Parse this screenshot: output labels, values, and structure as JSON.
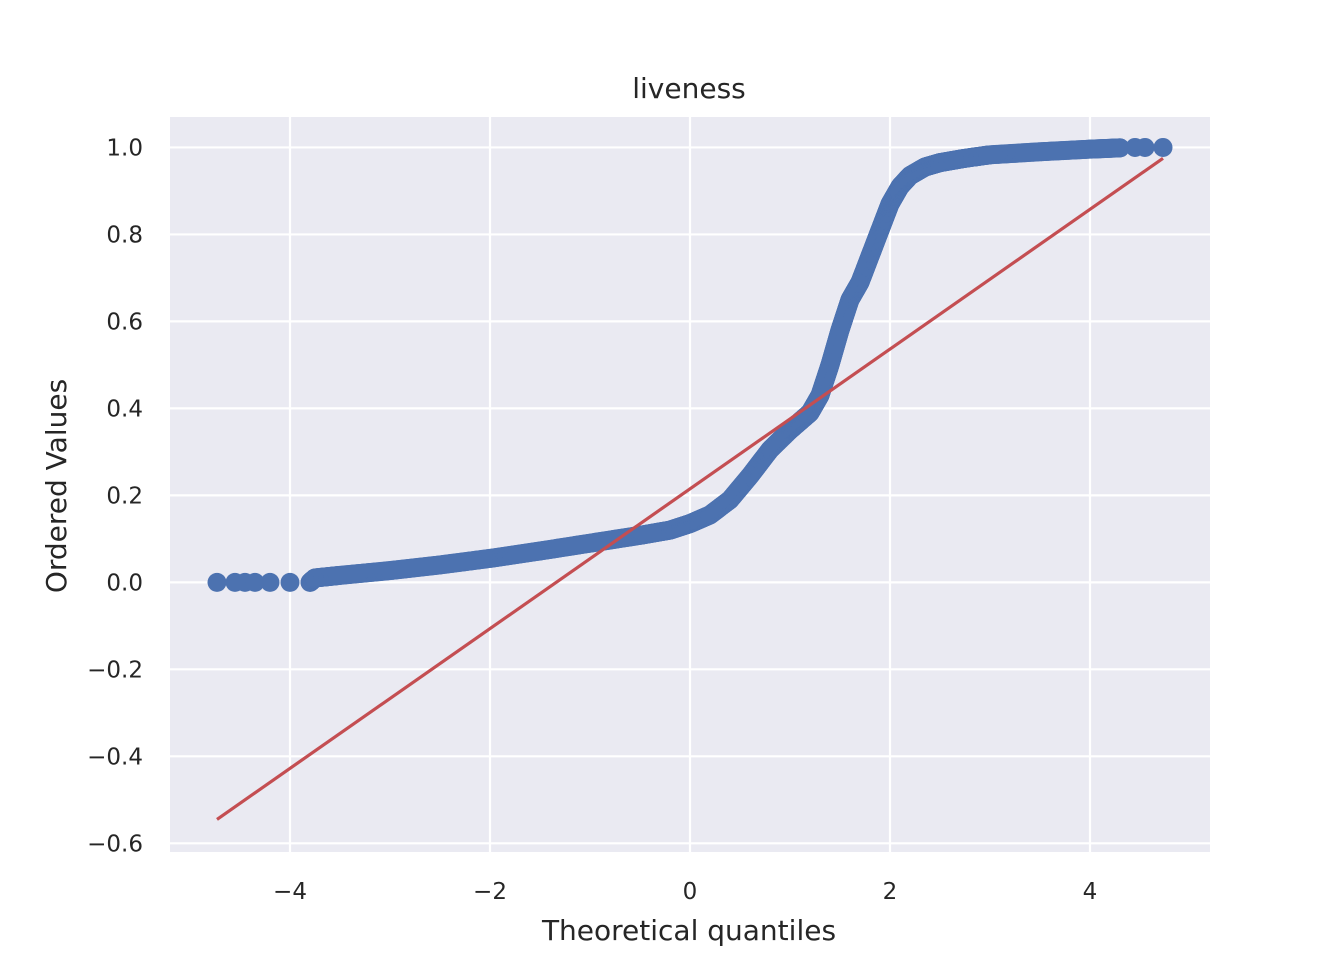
{
  "chart_data": {
    "type": "scatter",
    "title": "liveness",
    "xlabel": "Theoretical quantiles",
    "ylabel": "Ordered Values",
    "xlim": [
      -5.2,
      5.2
    ],
    "ylim": [
      -0.62,
      1.07
    ],
    "xticks": [
      -4,
      -2,
      0,
      2,
      4
    ],
    "xtick_labels": [
      "−4",
      "−2",
      "0",
      "2",
      "4"
    ],
    "yticks": [
      -0.6,
      -0.4,
      -0.2,
      0.0,
      0.2,
      0.4,
      0.6,
      0.8,
      1.0
    ],
    "ytick_labels": [
      "−0.6",
      "−0.4",
      "−0.2",
      "0.0",
      "0.2",
      "0.4",
      "0.6",
      "0.8",
      "1.0"
    ],
    "grid": true,
    "colors": {
      "background": "#eaeaf2",
      "points": "#4c72b0",
      "fit_line": "#c44e52",
      "grid": "#ffffff"
    },
    "series": [
      {
        "kind": "ordered-values",
        "points": [
          [
            -4.73,
            0.0
          ],
          [
            -4.55,
            0.0
          ],
          [
            -4.45,
            0.0
          ],
          [
            -4.35,
            0.0
          ],
          [
            -4.2,
            0.0
          ],
          [
            -4.0,
            0.0
          ],
          [
            -3.8,
            0.0
          ],
          [
            -3.75,
            0.01
          ],
          [
            -3.5,
            0.016
          ],
          [
            -3.0,
            0.027
          ],
          [
            -2.5,
            0.04
          ],
          [
            -2.0,
            0.055
          ],
          [
            -1.5,
            0.072
          ],
          [
            -1.0,
            0.09
          ],
          [
            -0.5,
            0.108
          ],
          [
            -0.2,
            0.12
          ],
          [
            0.0,
            0.135
          ],
          [
            0.2,
            0.155
          ],
          [
            0.4,
            0.19
          ],
          [
            0.6,
            0.245
          ],
          [
            0.8,
            0.305
          ],
          [
            1.0,
            0.35
          ],
          [
            1.1,
            0.37
          ],
          [
            1.2,
            0.39
          ],
          [
            1.3,
            0.43
          ],
          [
            1.4,
            0.5
          ],
          [
            1.5,
            0.58
          ],
          [
            1.6,
            0.65
          ],
          [
            1.7,
            0.69
          ],
          [
            1.8,
            0.75
          ],
          [
            1.9,
            0.81
          ],
          [
            2.0,
            0.87
          ],
          [
            2.1,
            0.91
          ],
          [
            2.2,
            0.935
          ],
          [
            2.35,
            0.955
          ],
          [
            2.5,
            0.965
          ],
          [
            2.75,
            0.975
          ],
          [
            3.0,
            0.983
          ],
          [
            3.5,
            0.99
          ],
          [
            4.0,
            0.996
          ],
          [
            4.3,
            0.999
          ],
          [
            4.45,
            1.0
          ],
          [
            4.55,
            1.0
          ],
          [
            4.73,
            1.0
          ]
        ]
      },
      {
        "kind": "fit-line",
        "points": [
          [
            -4.73,
            -0.545
          ],
          [
            4.73,
            0.975
          ]
        ]
      }
    ]
  }
}
